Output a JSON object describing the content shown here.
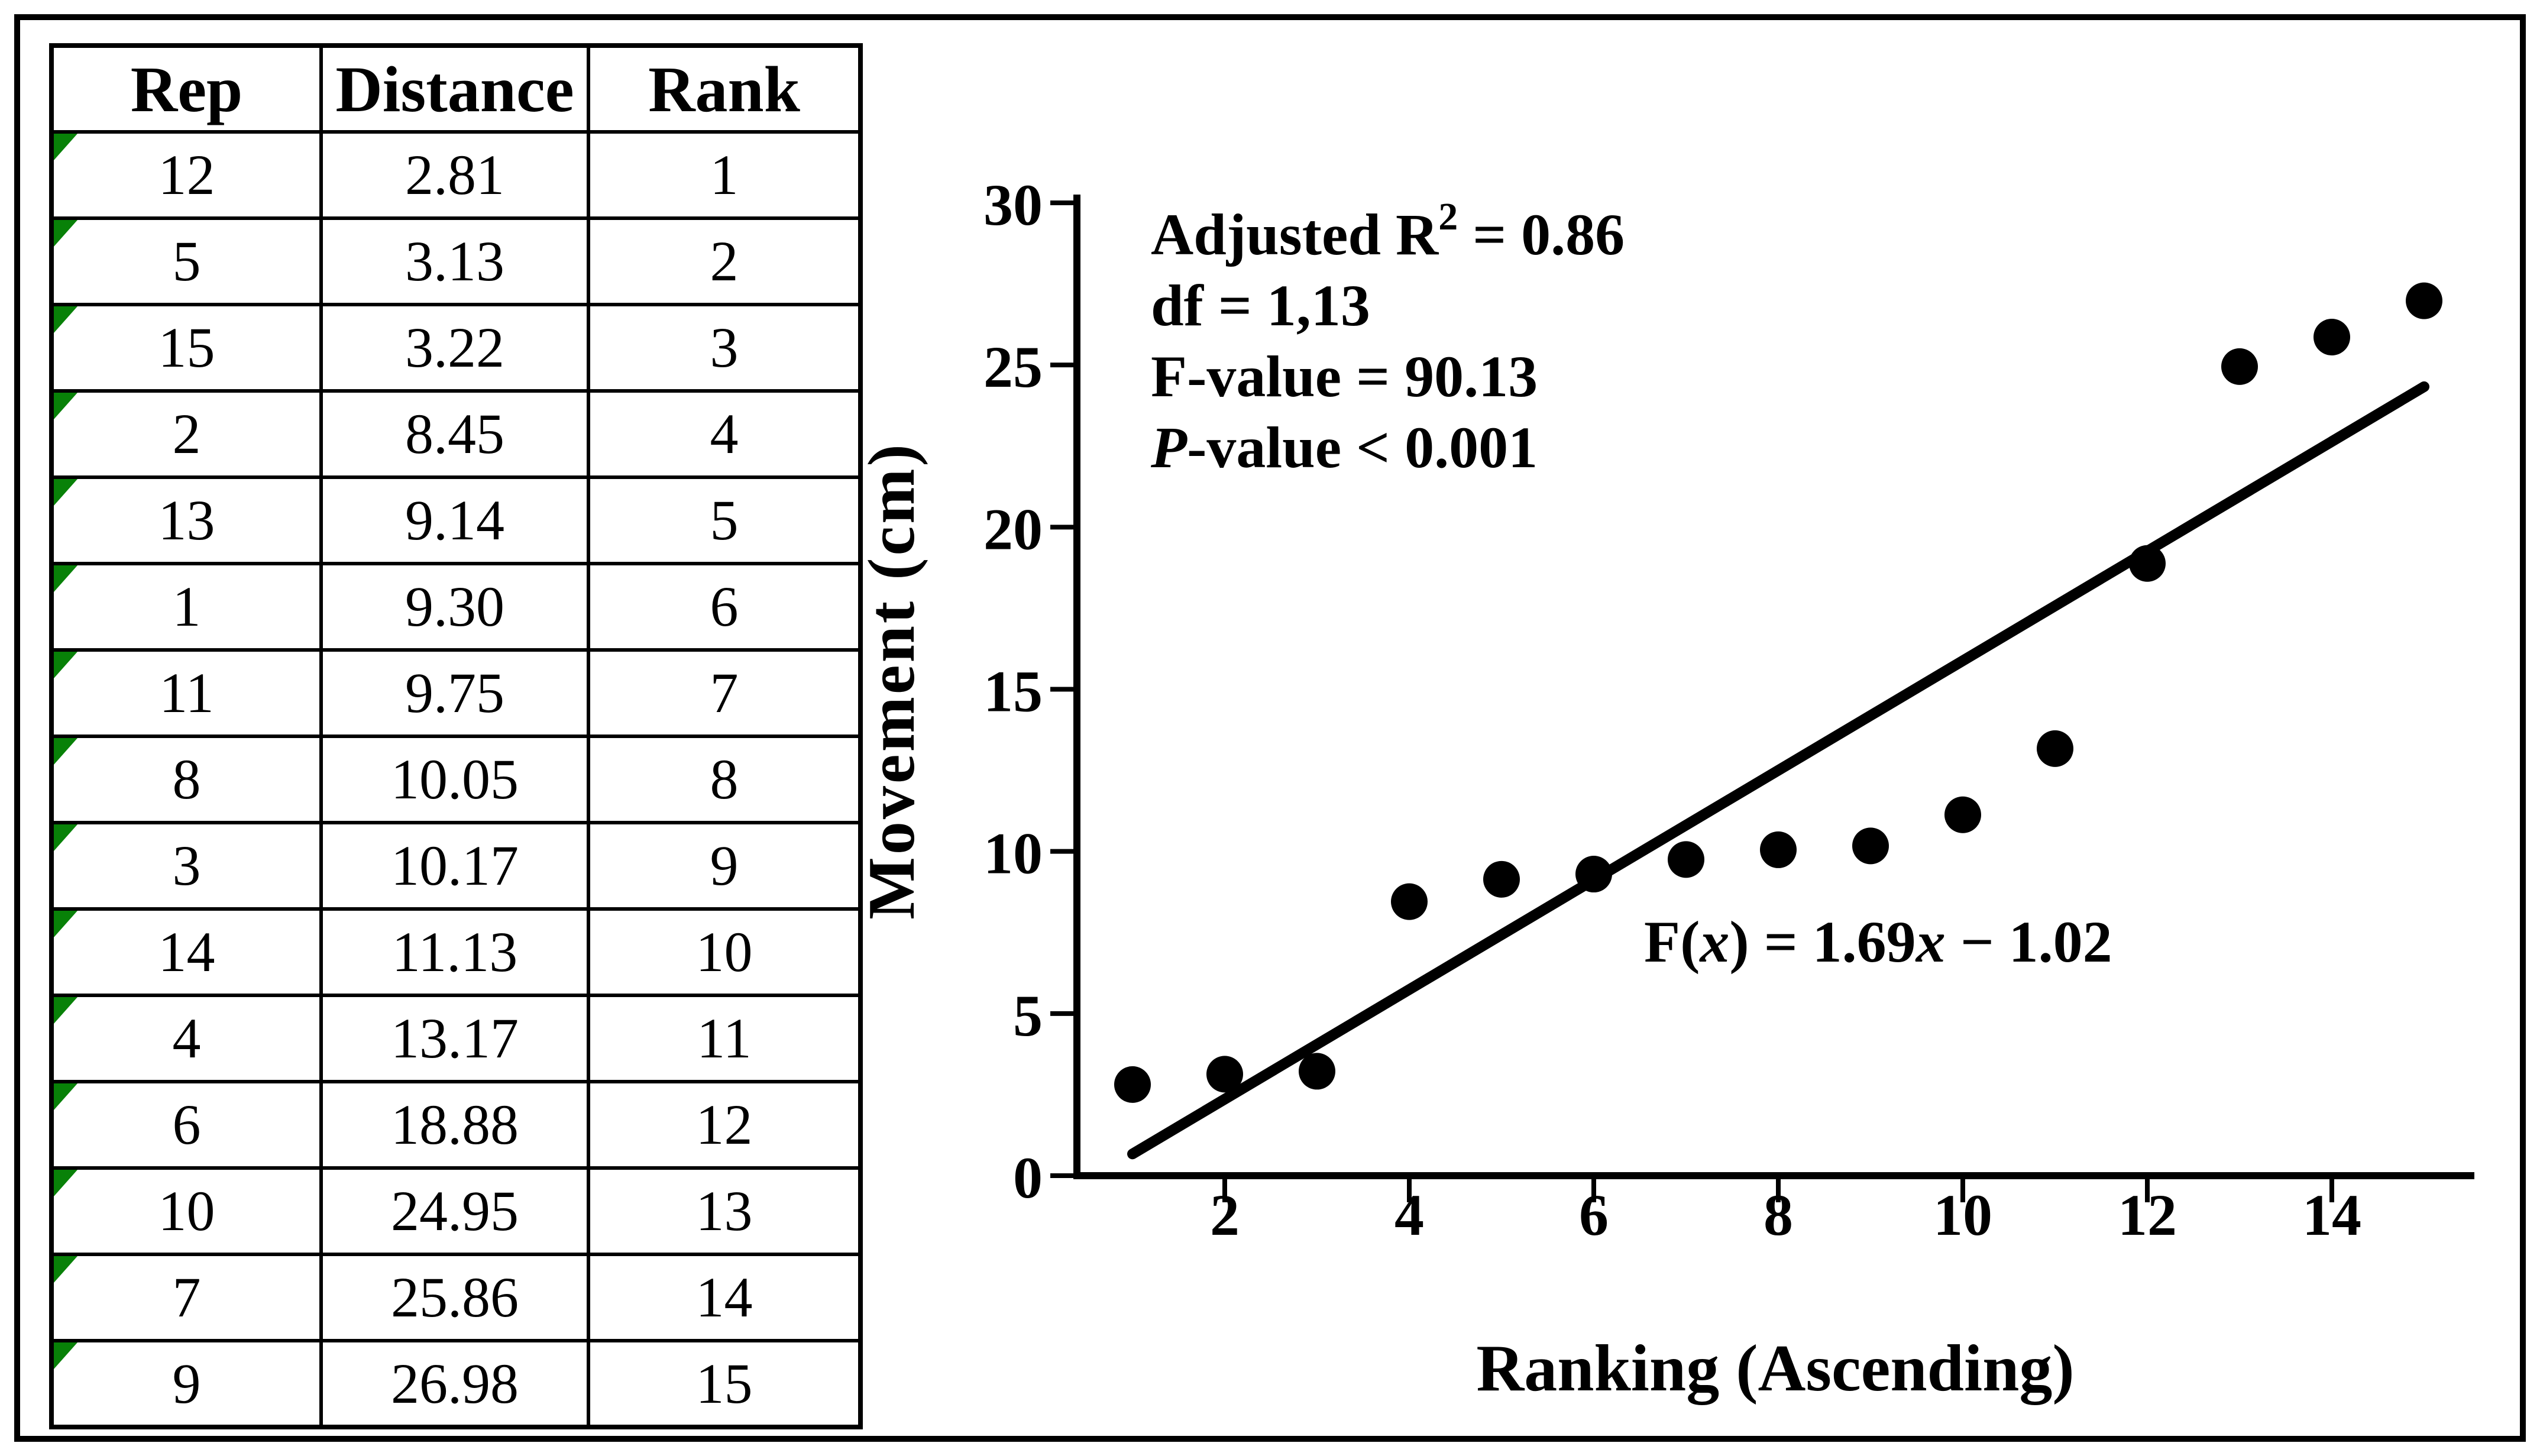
{
  "colors": {
    "ink": "#000000",
    "background": "#ffffff",
    "accent_green": "#088108"
  },
  "table": {
    "headers": [
      "Rep",
      "Distance",
      "Rank"
    ],
    "rows": [
      [
        "12",
        "2.81",
        "1"
      ],
      [
        "5",
        "3.13",
        "2"
      ],
      [
        "15",
        "3.22",
        "3"
      ],
      [
        "2",
        "8.45",
        "4"
      ],
      [
        "13",
        "9.14",
        "5"
      ],
      [
        "1",
        "9.30",
        "6"
      ],
      [
        "11",
        "9.75",
        "7"
      ],
      [
        "8",
        "10.05",
        "8"
      ],
      [
        "3",
        "10.17",
        "9"
      ],
      [
        "14",
        "11.13",
        "10"
      ],
      [
        "4",
        "13.17",
        "11"
      ],
      [
        "6",
        "18.88",
        "12"
      ],
      [
        "10",
        "24.95",
        "13"
      ],
      [
        "7",
        "25.86",
        "14"
      ],
      [
        "9",
        "26.98",
        "15"
      ]
    ]
  },
  "chart_data": {
    "type": "scatter",
    "title": "",
    "xlabel": "Ranking (Ascending)",
    "ylabel": "Movement (cm)",
    "x": [
      1,
      2,
      3,
      4,
      5,
      6,
      7,
      8,
      9,
      10,
      11,
      12,
      13,
      14,
      15
    ],
    "y": [
      2.81,
      3.13,
      3.22,
      8.45,
      9.14,
      9.3,
      9.75,
      10.05,
      10.17,
      11.13,
      13.17,
      18.88,
      24.95,
      25.86,
      26.98
    ],
    "xlim": [
      0.4,
      15.8
    ],
    "ylim": [
      0,
      30
    ],
    "x_ticks": [
      2,
      4,
      6,
      8,
      10,
      12,
      14
    ],
    "y_ticks": [
      0,
      5,
      10,
      15,
      20,
      25,
      30
    ],
    "grid": false,
    "legend": "none",
    "marker_color": "#000000",
    "trendline": {
      "slope": 1.69,
      "intercept": -1.02,
      "x_start": 1,
      "x_end": 15
    },
    "equation_segments": [
      {
        "t": "F("
      },
      {
        "t": "x",
        "i": true
      },
      {
        "t": ") = 1.69"
      },
      {
        "t": "x",
        "i": true
      },
      {
        "t": " − 1.02"
      }
    ],
    "annotations": [
      {
        "segments": [
          {
            "t": "Adjusted R"
          },
          {
            "t": "2",
            "sup": true
          },
          {
            "t": " = 0.86"
          }
        ]
      },
      {
        "segments": [
          {
            "t": "df = 1,13"
          }
        ]
      },
      {
        "segments": [
          {
            "t": "F-value = 90.13"
          }
        ]
      },
      {
        "segments": [
          {
            "t": "P",
            "i": true
          },
          {
            "t": "-value < 0.001"
          }
        ]
      }
    ]
  }
}
